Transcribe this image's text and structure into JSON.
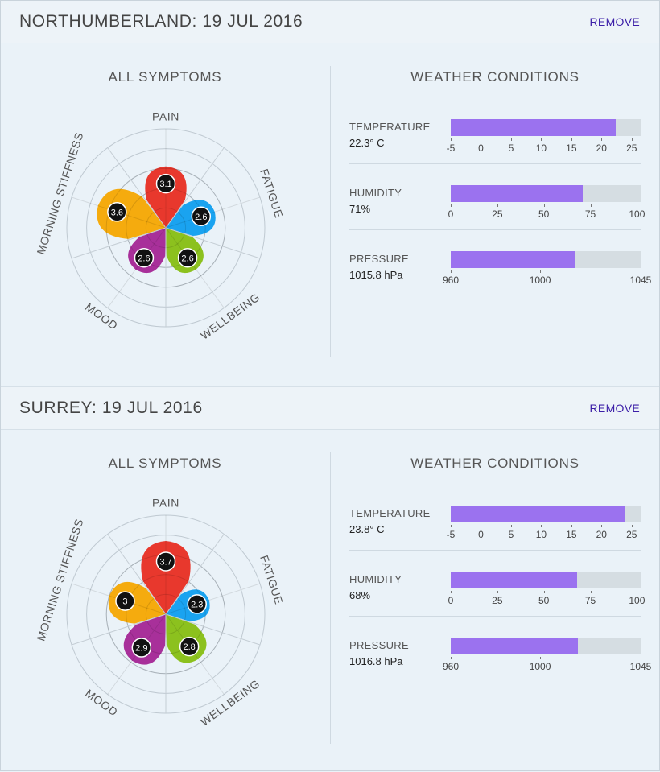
{
  "cards": [
    {
      "title": "NORTHUMBERLAND: 19 JUL 2016",
      "remove_label": "REMOVE",
      "symptoms_title": "ALL SYMPTOMS",
      "weather_title": "WEATHER CONDITIONS",
      "symptoms": [
        {
          "name": "PAIN",
          "value": 3.1,
          "value_label": "3.1",
          "color": "#e8382d"
        },
        {
          "name": "FATIGUE",
          "value": 2.6,
          "value_label": "2.6",
          "color": "#1aa3f0"
        },
        {
          "name": "WELLBEING",
          "value": 2.6,
          "value_label": "2.6",
          "color": "#8cc11e"
        },
        {
          "name": "MOOD",
          "value": 2.6,
          "value_label": "2.6",
          "color": "#a8309a"
        },
        {
          "name": "MORNING STIFFNESS",
          "value": 3.6,
          "value_label": "3.6",
          "color": "#f5ab0e"
        }
      ],
      "weather": [
        {
          "label": "TEMPERATURE",
          "value_text": "22.3° C",
          "value": 22.3,
          "min": -5,
          "max": 26.5,
          "ticks": [
            {
              "v": -5,
              "t": "-5"
            },
            {
              "v": 0,
              "t": "0"
            },
            {
              "v": 5,
              "t": "5"
            },
            {
              "v": 10,
              "t": "10"
            },
            {
              "v": 15,
              "t": "15"
            },
            {
              "v": 20,
              "t": "20"
            },
            {
              "v": 25,
              "t": "25"
            }
          ]
        },
        {
          "label": "HUMIDITY",
          "value_text": "71%",
          "value": 71,
          "min": 0,
          "max": 102,
          "ticks": [
            {
              "v": 0,
              "t": "0"
            },
            {
              "v": 25,
              "t": "25"
            },
            {
              "v": 50,
              "t": "50"
            },
            {
              "v": 75,
              "t": "75"
            },
            {
              "v": 100,
              "t": "100"
            }
          ]
        },
        {
          "label": "PRESSURE",
          "value_text": "1015.8 hPa",
          "value": 1015.8,
          "min": 960,
          "max": 1045,
          "ticks": [
            {
              "v": 960,
              "t": "960"
            },
            {
              "v": 1000,
              "t": "1000"
            },
            {
              "v": 1045,
              "t": "1045"
            }
          ]
        }
      ]
    },
    {
      "title": "SURREY: 19 JUL 2016",
      "remove_label": "REMOVE",
      "symptoms_title": "ALL SYMPTOMS",
      "weather_title": "WEATHER CONDITIONS",
      "symptoms": [
        {
          "name": "PAIN",
          "value": 3.7,
          "value_label": "3.7",
          "color": "#e8382d"
        },
        {
          "name": "FATIGUE",
          "value": 2.3,
          "value_label": "2.3",
          "color": "#1aa3f0"
        },
        {
          "name": "WELLBEING",
          "value": 2.8,
          "value_label": "2.8",
          "color": "#8cc11e"
        },
        {
          "name": "MOOD",
          "value": 2.9,
          "value_label": "2.9",
          "color": "#a8309a"
        },
        {
          "name": "MORNING STIFFNESS",
          "value": 3,
          "value_label": "3",
          "color": "#f5ab0e"
        }
      ],
      "weather": [
        {
          "label": "TEMPERATURE",
          "value_text": "23.8° C",
          "value": 23.8,
          "min": -5,
          "max": 26.5,
          "ticks": [
            {
              "v": -5,
              "t": "-5"
            },
            {
              "v": 0,
              "t": "0"
            },
            {
              "v": 5,
              "t": "5"
            },
            {
              "v": 10,
              "t": "10"
            },
            {
              "v": 15,
              "t": "15"
            },
            {
              "v": 20,
              "t": "20"
            },
            {
              "v": 25,
              "t": "25"
            }
          ]
        },
        {
          "label": "HUMIDITY",
          "value_text": "68%",
          "value": 68,
          "min": 0,
          "max": 102,
          "ticks": [
            {
              "v": 0,
              "t": "0"
            },
            {
              "v": 25,
              "t": "25"
            },
            {
              "v": 50,
              "t": "50"
            },
            {
              "v": 75,
              "t": "75"
            },
            {
              "v": 100,
              "t": "100"
            }
          ]
        },
        {
          "label": "PRESSURE",
          "value_text": "1016.8 hPa",
          "value": 1016.8,
          "min": 960,
          "max": 1045,
          "ticks": [
            {
              "v": 960,
              "t": "960"
            },
            {
              "v": 1000,
              "t": "1000"
            },
            {
              "v": 1045,
              "t": "1045"
            }
          ]
        }
      ]
    }
  ],
  "chart_data": [
    {
      "type": "radial",
      "title": "ALL SYMPTOMS",
      "categories": [
        "PAIN",
        "FATIGUE",
        "WELLBEING",
        "MOOD",
        "MORNING STIFFNESS"
      ],
      "values": [
        3.1,
        2.6,
        2.6,
        2.6,
        3.6
      ],
      "rlim": [
        0,
        5
      ]
    },
    {
      "type": "radial",
      "title": "ALL SYMPTOMS",
      "categories": [
        "PAIN",
        "FATIGUE",
        "WELLBEING",
        "MOOD",
        "MORNING STIFFNESS"
      ],
      "values": [
        3.7,
        2.3,
        2.8,
        2.9,
        3
      ],
      "rlim": [
        0,
        5
      ]
    }
  ]
}
